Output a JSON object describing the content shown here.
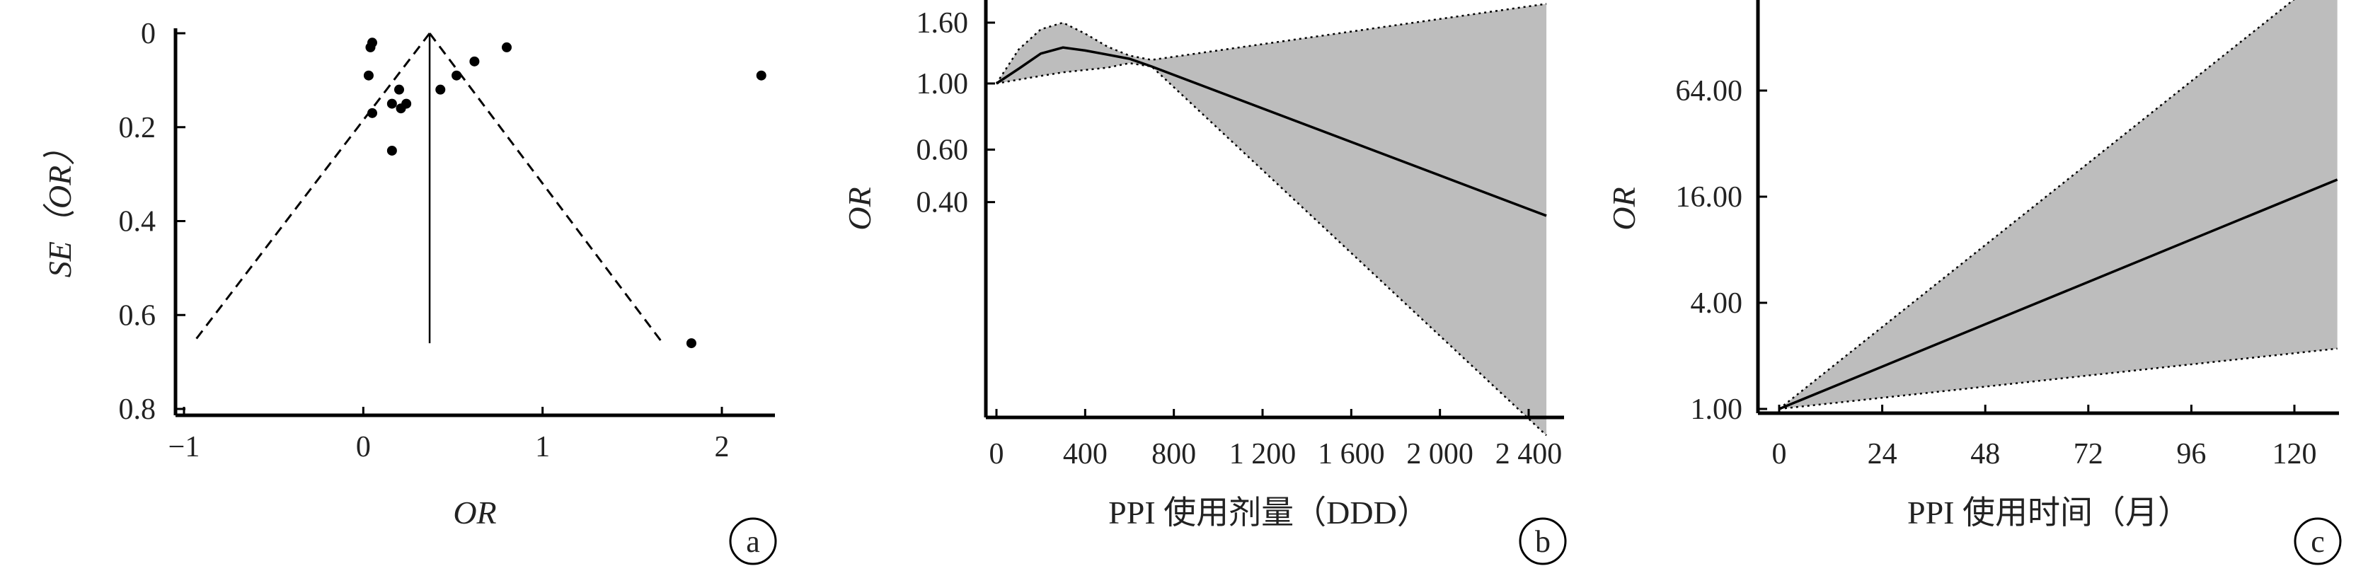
{
  "chart_data": [
    {
      "type": "scatter",
      "panel_label": "a",
      "xlabel": "OR",
      "ylabel": "SE（OR）",
      "xticks": [
        "−1",
        "0",
        "1",
        "2"
      ],
      "yticks": [
        "0",
        "0.2",
        "0.4",
        "0.6",
        "0.8"
      ],
      "xlim": [
        -1.05,
        2.3
      ],
      "ylim": [
        0,
        0.82
      ],
      "y_reversed": true,
      "pooled_or": 0.37,
      "funnel_apex": [
        0.37,
        0.0
      ],
      "funnel_base_left": [
        -0.95,
        0.66
      ],
      "funnel_base_right": [
        1.67,
        0.66
      ],
      "points": [
        {
          "x": 0.05,
          "y": 0.02
        },
        {
          "x": 0.04,
          "y": 0.03
        },
        {
          "x": 0.03,
          "y": 0.09
        },
        {
          "x": 0.05,
          "y": 0.17
        },
        {
          "x": 0.16,
          "y": 0.15
        },
        {
          "x": 0.2,
          "y": 0.12
        },
        {
          "x": 0.21,
          "y": 0.16
        },
        {
          "x": 0.24,
          "y": 0.15
        },
        {
          "x": 0.16,
          "y": 0.25
        },
        {
          "x": 0.43,
          "y": 0.12
        },
        {
          "x": 0.52,
          "y": 0.09
        },
        {
          "x": 0.62,
          "y": 0.06
        },
        {
          "x": 0.8,
          "y": 0.03
        },
        {
          "x": 2.22,
          "y": 0.09
        },
        {
          "x": 1.83,
          "y": 0.66
        }
      ]
    },
    {
      "type": "line",
      "panel_label": "b",
      "xlabel": "PPI 使用剂量（DDD）",
      "ylabel": "OR",
      "xticks": [
        "0",
        "400",
        "800",
        "1 200",
        "1 600",
        "2 000",
        "2 400"
      ],
      "yticks": [
        "1.60",
        "1.00",
        "0.60",
        "0.40"
      ],
      "ytick_values": [
        1.6,
        1.0,
        0.6,
        0.4
      ],
      "xlim": [
        -20,
        2520
      ],
      "ylim": [
        0.055,
        2.0
      ],
      "log_scale_y": true,
      "series": [
        {
          "role": "estimate",
          "x": [
            0,
            100,
            200,
            300,
            400,
            500,
            600,
            700,
            2480
          ],
          "y": [
            1.0,
            1.12,
            1.26,
            1.32,
            1.29,
            1.25,
            1.21,
            1.14,
            0.36
          ]
        },
        {
          "role": "upper",
          "x": [
            0,
            100,
            200,
            300,
            400,
            500,
            600,
            700,
            2480
          ],
          "y": [
            1.0,
            1.3,
            1.52,
            1.6,
            1.47,
            1.33,
            1.24,
            1.2,
            1.85
          ]
        },
        {
          "role": "lower",
          "x": [
            0,
            100,
            200,
            300,
            400,
            500,
            600,
            700,
            2480
          ],
          "y": [
            1.0,
            1.03,
            1.06,
            1.09,
            1.11,
            1.13,
            1.17,
            1.14,
            0.066
          ]
        }
      ]
    },
    {
      "type": "line",
      "panel_label": "c",
      "xlabel": "PPI 使用时间（月）",
      "ylabel": "OR",
      "xticks": [
        "0",
        "24",
        "48",
        "72",
        "96",
        "120"
      ],
      "yticks": [
        "64.00",
        "16.00",
        "4.00",
        "1.00"
      ],
      "ytick_values": [
        64,
        16,
        4,
        1
      ],
      "xlim": [
        -1,
        135
      ],
      "ylim": [
        0.95,
        400
      ],
      "log_scale_y": true,
      "series": [
        {
          "role": "estimate",
          "x": [
            0,
            130
          ],
          "y": [
            1.0,
            20.0
          ]
        },
        {
          "role": "upper",
          "x": [
            0,
            130
          ],
          "y": [
            1.0,
            330.0
          ]
        },
        {
          "role": "lower",
          "x": [
            0,
            130
          ],
          "y": [
            1.0,
            2.2
          ]
        }
      ]
    }
  ],
  "style": {
    "band_fill": "#bdbdbd",
    "axis_color": "#000000",
    "line_color": "#000000"
  }
}
